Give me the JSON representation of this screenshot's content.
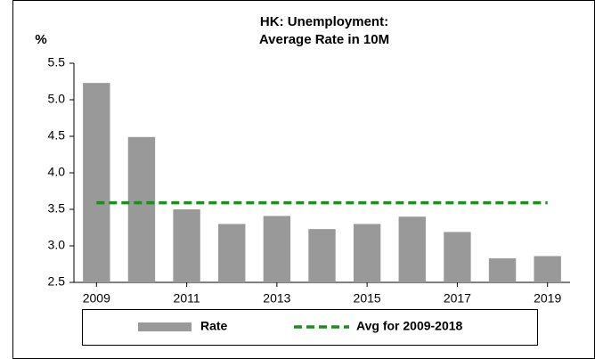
{
  "chart_data": {
    "type": "bar",
    "title": "HK: Unemployment:",
    "subtitle": "Average Rate in 10M",
    "y_label": "%",
    "categories": [
      "2009",
      null,
      "2011",
      null,
      "2013",
      null,
      "2015",
      null,
      "2017",
      null,
      "2019"
    ],
    "series": [
      {
        "name": "Rate",
        "color": "#999999",
        "type": "bar",
        "values": [
          5.23,
          4.49,
          3.5,
          3.3,
          3.41,
          3.23,
          3.3,
          3.4,
          3.19,
          2.83,
          2.86
        ]
      },
      {
        "name": "Avg for 2009-2018",
        "color": "#1e8c1e",
        "type": "line",
        "values": [
          3.59,
          3.59,
          3.59,
          3.59,
          3.59,
          3.59,
          3.59,
          3.59,
          3.59,
          3.59,
          3.59
        ]
      }
    ],
    "ylim": [
      2.5,
      5.5
    ],
    "yticks": [
      2.5,
      {
        "value": 3,
        "label": "3.0"
      },
      3.5,
      {
        "value": 4,
        "label": "4.0"
      },
      4.5,
      {
        "value": 5,
        "label": "5.0"
      },
      5.5
    ],
    "grid": false
  }
}
